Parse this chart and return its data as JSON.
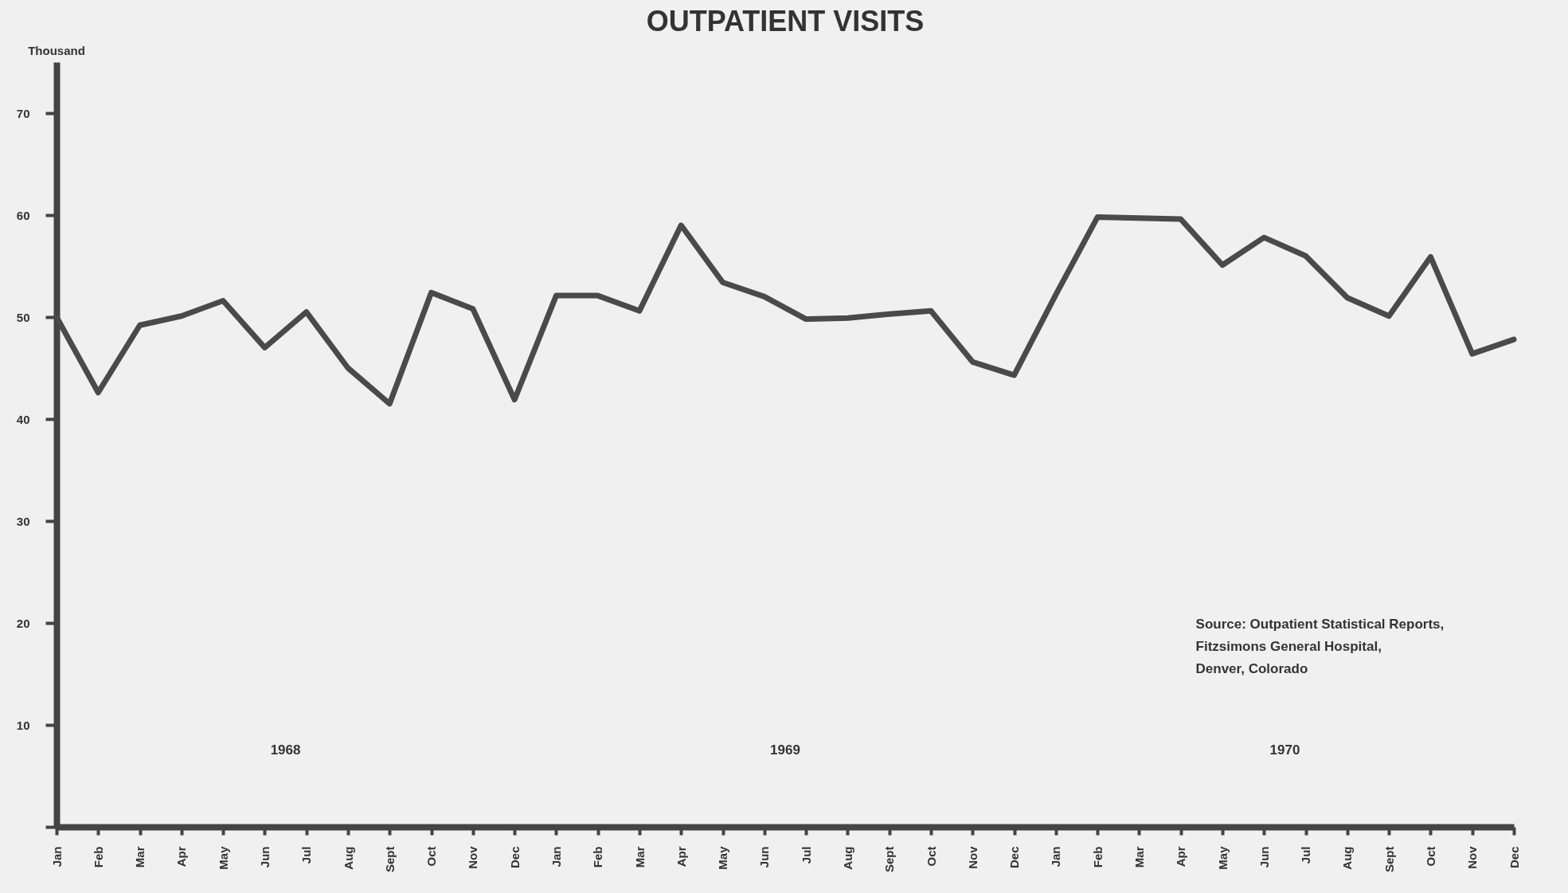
{
  "chart_data": {
    "type": "line",
    "title": "OUTPATIENT VISITS",
    "ylabel": "Thousand",
    "categories": [
      "Jan",
      "Feb",
      "Mar",
      "Apr",
      "May",
      "Jun",
      "Jul",
      "Aug",
      "Sept",
      "Oct",
      "Nov",
      "Dec",
      "Jan",
      "Feb",
      "Mar",
      "Apr",
      "May",
      "Jun",
      "Jul",
      "Aug",
      "Sept",
      "Oct",
      "Nov",
      "Dec",
      "Jan",
      "Feb",
      "Mar",
      "Apr",
      "May",
      "Jun",
      "Jul",
      "Aug",
      "Sept",
      "Oct",
      "Nov",
      "Dec"
    ],
    "series": [
      {
        "color": "#4a4a4a",
        "values": [
          50.0,
          42.6,
          49.2,
          50.1,
          51.6,
          47.0,
          50.5,
          45.0,
          41.5,
          52.4,
          50.8,
          41.9,
          52.1,
          52.1,
          50.6,
          59.0,
          53.4,
          52.0,
          49.8,
          49.9,
          50.3,
          50.6,
          45.6,
          44.3,
          52.2,
          59.8,
          59.7,
          59.6,
          55.1,
          57.8,
          56.0,
          51.9,
          50.1,
          55.9,
          46.4,
          47.8
        ]
      }
    ],
    "ylim": [
      0,
      75
    ],
    "yticks": [
      {
        "value": 0,
        "label": null
      },
      10,
      20,
      30,
      40,
      50,
      60,
      70
    ],
    "grid": false,
    "marker": "none",
    "line_style": "solid",
    "annotations": [
      "1968",
      "1969",
      "1970",
      "Source: Outpatient Statistical Reports,\nFitzsimons General Hospital,\nDenver, Colorado"
    ]
  }
}
